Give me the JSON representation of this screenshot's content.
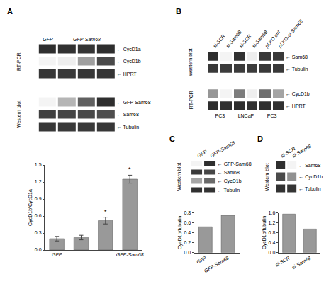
{
  "chart_data": [
    {
      "type": "heatmap",
      "title": "A",
      "ylabel": "RT-PCR",
      "categories": [
        "GFP",
        null,
        "GFP-Sam68",
        null
      ],
      "rows": [
        "← CycD1a",
        "← CycD1b",
        "← HPRT"
      ],
      "cells": [
        [
          0.88,
          0.87,
          0.86,
          0.88
        ],
        [
          0.18,
          0.2,
          0.48,
          0.78
        ],
        [
          0.85,
          0.84,
          0.85,
          0.86
        ]
      ]
    },
    {
      "type": "heatmap",
      "ylabel": "Western blot",
      "tick_labels": "y",
      "rows": [
        "← GFP-Sam68",
        "← Sam68",
        "← Tubulin"
      ],
      "cells": [
        [
          0.02,
          0.3,
          0.68,
          0.9
        ],
        [
          0.82,
          0.8,
          0.78,
          0.76
        ],
        [
          0.86,
          0.85,
          0.85,
          0.86
        ]
      ]
    },
    {
      "type": "bar",
      "categories": [
        "GFP",
        null,
        null,
        "GFP-Sam68"
      ],
      "values": [
        0.2,
        0.22,
        0.52,
        1.25
      ],
      "errors": [
        0.04,
        0.04,
        0.06,
        0.07
      ],
      "color": "#999999",
      "ylabel": "CycD1b/CycD1a",
      "ylim": [
        0,
        1.5
      ],
      "yticks": [
        {
          "value": 0,
          "label": "0.0"
        },
        0.3,
        0.6,
        0.9,
        1.2,
        1.5
      ],
      "annotations": [
        {
          "x": 2,
          "text": "*"
        },
        {
          "x": 3,
          "text": "*"
        }
      ],
      "grid": false
    },
    {
      "type": "heatmap",
      "title": "B",
      "ylabel": "Western blot",
      "categories": [
        "si-SCR",
        "si-Sam68",
        "si-SCR",
        "si-Sam68",
        "pLKO ctrl",
        "pLKO-si-Sam68"
      ],
      "rows": [
        "← Sam68",
        "← Tubulin"
      ],
      "cells": [
        [
          0.88,
          0.18,
          0.87,
          0.2,
          0.84,
          0.84
        ],
        [
          0.84,
          0.83,
          0.83,
          0.83,
          0.84,
          0.84
        ]
      ]
    },
    {
      "type": "heatmap",
      "ylabel": "RT-PCR",
      "groups": [
        "PC3",
        "LNCaP",
        "PC3"
      ],
      "rows": [
        "← CycD1b",
        "← HPRT"
      ],
      "cells": [
        [
          0.45,
          0.1,
          0.55,
          0.12,
          0.6,
          0.4
        ],
        [
          0.84,
          0.83,
          0.84,
          0.83,
          0.84,
          0.83
        ]
      ]
    },
    {
      "type": "heatmap",
      "title": "C",
      "ylabel": "Western blot",
      "categories": [
        "GFP",
        "GFP-Sam68"
      ],
      "rows": [
        "← GFP-Sam68",
        "← Sam68",
        "← CycD1b",
        "← Tubulin"
      ],
      "cells": [
        [
          0.02,
          0.85
        ],
        [
          0.8,
          0.75
        ],
        [
          0.35,
          0.6
        ],
        [
          0.84,
          0.83
        ]
      ]
    },
    {
      "type": "bar",
      "categories": [
        "GFP",
        "GFP-Sam68"
      ],
      "values": [
        0.52,
        0.75
      ],
      "color": "#999999",
      "ylabel": "CycD1b/tubulin",
      "ylim": [
        0,
        0.8
      ],
      "yticks": [
        {
          "value": 0,
          "label": "0.0"
        },
        0.2,
        0.4,
        0.6,
        0.8
      ],
      "grid": false
    },
    {
      "type": "heatmap",
      "title": "D",
      "ylabel": "Western blot",
      "categories": [
        "si-SCR",
        "si-Sam68"
      ],
      "rows": [
        "← Sam68",
        "← CycD1b",
        "← Tubulin"
      ],
      "cells": [
        [
          0.85,
          0.15
        ],
        [
          0.75,
          0.5
        ],
        [
          0.84,
          0.83
        ]
      ]
    },
    {
      "type": "bar",
      "categories": [
        "si-SCR",
        "si-Sam68"
      ],
      "values": [
        1.55,
        0.95
      ],
      "color": "#999999",
      "ylabel": "CycD1b/tubulin",
      "ylim": [
        0,
        1.6
      ],
      "yticks": [
        {
          "value": 0,
          "label": "0.0"
        },
        0.4,
        0.8,
        1.2,
        1.6
      ],
      "grid": false
    }
  ]
}
